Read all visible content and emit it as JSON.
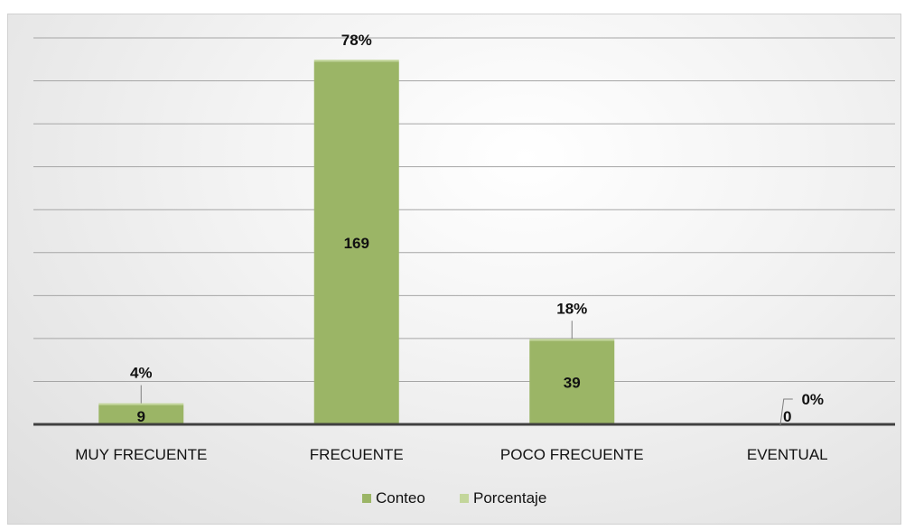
{
  "colors": {
    "conteo": "#9bb566",
    "porcentaje": "#c3d69b",
    "grid": "#a6a6a6",
    "axis": "#404040",
    "leader": "#7f7f7f"
  },
  "chart_data": {
    "type": "bar",
    "categories": [
      "MUY FRECUENTE",
      "FRECUENTE",
      "POCO FRECUENTE",
      "EVENTUAL"
    ],
    "series": [
      {
        "name": "Conteo",
        "values": [
          9,
          169,
          39,
          0
        ],
        "labels": [
          "9",
          "169",
          "39",
          "0"
        ]
      },
      {
        "name": "Porcentaje",
        "values": [
          4,
          78,
          18,
          0
        ],
        "labels": [
          "4%",
          "78%",
          "18%",
          "0%"
        ]
      }
    ],
    "title": "",
    "xlabel": "",
    "ylabel": "",
    "ylim": [
      0,
      180
    ],
    "grid": true,
    "legend_position": "bottom"
  }
}
